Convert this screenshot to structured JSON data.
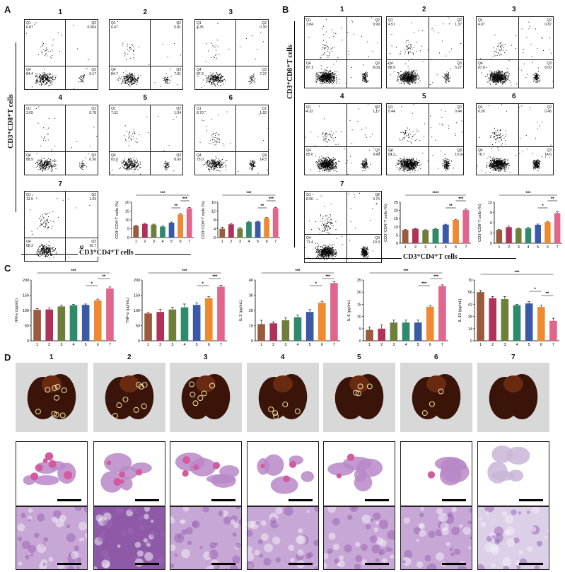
{
  "panels": {
    "A": "A",
    "B": "B",
    "C": "C",
    "D": "D"
  },
  "groups": [
    "1",
    "2",
    "3",
    "4",
    "5",
    "6",
    "7"
  ],
  "panelA": {
    "y_axis_label": "CD3⁺CD8⁺T cells",
    "x_axis_label": "CD3⁺CD4⁺T cells",
    "plots": [
      {
        "num": "1",
        "Q1": "6.87",
        "Q2": "0.064",
        "Q3": "6.17",
        "Q4": "84.4"
      },
      {
        "num": "2",
        "Q1": "6.47",
        "Q2": "0.91",
        "Q3": "7.91",
        "Q4": "84.7"
      },
      {
        "num": "3",
        "Q1": "4.35",
        "Q2": "0.39",
        "Q3": "7.37",
        "Q4": "87.9"
      },
      {
        "num": "4",
        "Q1": "3.65",
        "Q2": "0.78",
        "Q3": "6.56",
        "Q4": "88.9"
      },
      {
        "num": "5",
        "Q1": "7.31",
        "Q2": "1.04",
        "Q3": "8.60",
        "Q4": "83.0"
      },
      {
        "num": "6",
        "Q1": "8.70",
        "Q2": "1.82",
        "Q3": "14.5",
        "Q4": "75.0"
      },
      {
        "num": "7",
        "Q1": "13.9",
        "Q2": "1.69",
        "Q3": "16.7",
        "Q4": "68.3"
      }
    ]
  },
  "panelB": {
    "y_axis_label": "CD3⁺CD8⁺T cells",
    "x_axis_label": "CD3⁺CD4⁺T cells",
    "plots": [
      {
        "num": "1",
        "Q1": "3.84",
        "Q2": "0.99",
        "Q3": "8.09",
        "Q4": "87.1"
      },
      {
        "num": "2",
        "Q1": "4.51",
        "Q2": "1.37",
        "Q3": "5.27",
        "Q4": "88.9"
      },
      {
        "num": "3",
        "Q1": "4.07",
        "Q2": "0.87",
        "Q3": "8.00",
        "Q4": "87.0"
      },
      {
        "num": "4",
        "Q1": "4.32",
        "Q2": "1.17",
        "Q3": "9.49",
        "Q4": "85.0"
      },
      {
        "num": "5",
        "Q1": "5.44",
        "Q2": "0.44",
        "Q3": "10.9",
        "Q4": "83.2"
      },
      {
        "num": "6",
        "Q1": "6.26",
        "Q2": "0.46",
        "Q3": "14.6",
        "Q4": "78.7"
      },
      {
        "num": "7",
        "Q1": "8.90",
        "Q2": "0.76",
        "Q3": "19.3",
        "Q4": "71.4"
      }
    ]
  },
  "colors": [
    "#9c5a3c",
    "#b0325a",
    "#6e7f3a",
    "#2f8a6c",
    "#3a5aa8",
    "#f08a30",
    "#e0668c"
  ],
  "chart_data": [
    {
      "id": "A-cd4",
      "type": "bar",
      "ylabel": "CD3⁺CD4⁺T cells (%)",
      "ylim": [
        0,
        20
      ],
      "yticks": [
        "0",
        "5",
        "10",
        "15",
        "20"
      ],
      "categories": [
        "1",
        "2",
        "3",
        "4",
        "5",
        "6",
        "7"
      ],
      "values": [
        6.6,
        7.7,
        7.3,
        6.2,
        8.4,
        13.1,
        16.6
      ],
      "errors": [
        0.4,
        0.4,
        0.3,
        0.3,
        0.4,
        0.5,
        0.4
      ],
      "annotations": [
        "***",
        "***",
        "**"
      ]
    },
    {
      "id": "A-cd8",
      "type": "bar",
      "ylabel": "CD3⁺CD8⁺T cells (%)",
      "ylim": [
        0,
        16
      ],
      "yticks": [
        "0",
        "4",
        "8",
        "12",
        "16"
      ],
      "categories": [
        "1",
        "2",
        "3",
        "4",
        "5",
        "6",
        "7"
      ],
      "values": [
        4.0,
        6.0,
        4.1,
        7.0,
        7.2,
        8.8,
        13.3
      ],
      "errors": [
        0.7,
        0.4,
        0.4,
        0.2,
        0.2,
        0.3,
        0.4
      ],
      "annotations": [
        "***",
        "***",
        "**"
      ]
    },
    {
      "id": "B-cd4",
      "type": "bar",
      "ylabel": "CD3⁺CD4⁺T cells (%)",
      "ylim": [
        0,
        25
      ],
      "yticks": [
        "0",
        "5",
        "10",
        "15",
        "20",
        "25"
      ],
      "categories": [
        "1",
        "2",
        "3",
        "4",
        "5",
        "6",
        "7"
      ],
      "values": [
        8.1,
        8.8,
        8.0,
        8.7,
        11.3,
        14.2,
        20.3
      ],
      "errors": [
        0.3,
        0.3,
        0.2,
        0.3,
        0.3,
        0.4,
        0.6
      ],
      "annotations": [
        "****",
        "***",
        "**"
      ]
    },
    {
      "id": "B-cd8",
      "type": "bar",
      "ylabel": "CD3⁺CD8⁺T cells (%)",
      "ylim": [
        0,
        12
      ],
      "yticks": [
        "0",
        "3",
        "6",
        "9",
        "12"
      ],
      "categories": [
        "1",
        "2",
        "3",
        "4",
        "5",
        "6",
        "7"
      ],
      "values": [
        3.9,
        4.7,
        4.3,
        4.4,
        5.4,
        6.2,
        8.8
      ],
      "errors": [
        0.1,
        0.3,
        0.2,
        0.2,
        0.2,
        0.2,
        0.4
      ],
      "annotations": [
        "***",
        "**",
        "*"
      ]
    },
    {
      "id": "C-ifn",
      "type": "bar",
      "ylabel": "IFN-γ (pg/mL)",
      "ylim": [
        0,
        200
      ],
      "yticks": [
        "0",
        "50",
        "100",
        "150",
        "200"
      ],
      "categories": [
        "1",
        "2",
        "3",
        "4",
        "5",
        "6",
        "7"
      ],
      "values": [
        102,
        103,
        113,
        117,
        118,
        133,
        172
      ],
      "errors": [
        4,
        5,
        4,
        3,
        3,
        4,
        5
      ],
      "annotations": [
        "***",
        "**",
        "*"
      ]
    },
    {
      "id": "C-tnf",
      "type": "bar",
      "ylabel": "TNF-α (pg/mL)",
      "ylim": [
        0,
        200
      ],
      "yticks": [
        "0",
        "50",
        "100",
        "150",
        "200"
      ],
      "categories": [
        "1",
        "2",
        "3",
        "4",
        "5",
        "6",
        "7"
      ],
      "values": [
        90,
        95,
        103,
        110,
        118,
        140,
        178
      ],
      "errors": [
        4,
        8,
        7,
        11,
        7,
        5,
        5
      ],
      "annotations": [
        "***",
        "***",
        "*"
      ]
    },
    {
      "id": "C-il2",
      "type": "bar",
      "ylabel": "IL-2 (pg/mL)",
      "ylim": [
        0,
        40
      ],
      "yticks": [
        "0",
        "10",
        "20",
        "30",
        "40"
      ],
      "categories": [
        "1",
        "2",
        "3",
        "4",
        "5",
        "6",
        "7"
      ],
      "values": [
        11,
        11.5,
        13.5,
        15.5,
        19,
        25,
        38
      ],
      "errors": [
        2.5,
        1,
        1.5,
        1.5,
        1.5,
        1,
        1
      ],
      "annotations": [
        "***",
        "***",
        "*"
      ]
    },
    {
      "id": "C-il6",
      "type": "bar",
      "ylabel": "IL-6 (pg/mL)",
      "ylim": [
        0,
        25
      ],
      "yticks": [
        "0",
        "5",
        "10",
        "15",
        "20",
        "25"
      ],
      "categories": [
        "1",
        "2",
        "3",
        "4",
        "5",
        "6",
        "7"
      ],
      "values": [
        4.5,
        5,
        7.5,
        7.5,
        7.5,
        14,
        22.5
      ],
      "errors": [
        1.2,
        1.5,
        1,
        1,
        1,
        0.5,
        0.5
      ],
      "annotations": [
        "***",
        "***",
        "***"
      ]
    },
    {
      "id": "C-il10",
      "type": "bar",
      "ylabel": "IL-10 (pg/mL)",
      "ylim": [
        0,
        70
      ],
      "yticks": [
        "0",
        "14",
        "28",
        "42",
        "56",
        "70"
      ],
      "categories": [
        "1",
        "2",
        "3",
        "4",
        "5",
        "6",
        "7"
      ],
      "values": [
        56,
        49,
        48,
        41,
        43,
        39,
        23
      ],
      "errors": [
        2,
        2,
        3,
        1,
        2,
        2,
        3
      ],
      "annotations": [
        "***",
        "**",
        "*"
      ]
    }
  ]
}
